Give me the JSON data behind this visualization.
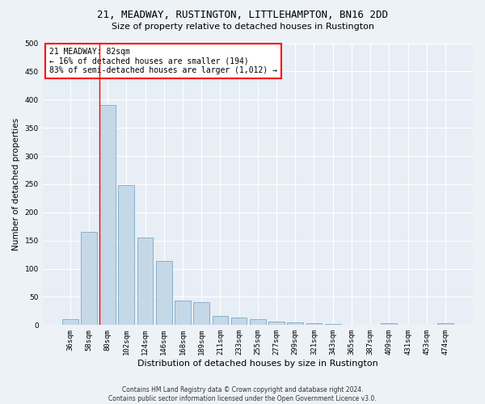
{
  "title1": "21, MEADWAY, RUSTINGTON, LITTLEHAMPTON, BN16 2DD",
  "title2": "Size of property relative to detached houses in Rustington",
  "xlabel": "Distribution of detached houses by size in Rustington",
  "ylabel": "Number of detached properties",
  "footnote": "Contains HM Land Registry data © Crown copyright and database right 2024.\nContains public sector information licensed under the Open Government Licence v3.0.",
  "categories": [
    "36sqm",
    "58sqm",
    "80sqm",
    "102sqm",
    "124sqm",
    "146sqm",
    "168sqm",
    "189sqm",
    "211sqm",
    "233sqm",
    "255sqm",
    "277sqm",
    "299sqm",
    "321sqm",
    "343sqm",
    "365sqm",
    "387sqm",
    "409sqm",
    "431sqm",
    "453sqm",
    "474sqm"
  ],
  "values": [
    10,
    165,
    390,
    248,
    155,
    113,
    43,
    40,
    16,
    13,
    10,
    6,
    5,
    3,
    2,
    1,
    0,
    4,
    1,
    1,
    3
  ],
  "bar_color": "#c5d8e8",
  "bar_edge_color": "#7aaac8",
  "red_line_index": 2,
  "annotation_text": "21 MEADWAY: 82sqm\n← 16% of detached houses are smaller (194)\n83% of semi-detached houses are larger (1,012) →",
  "annotation_box_color": "white",
  "annotation_box_edge_color": "red",
  "annotation_fontsize": 7,
  "title1_fontsize": 9,
  "title2_fontsize": 8,
  "xlabel_fontsize": 8,
  "ylabel_fontsize": 7.5,
  "tick_fontsize": 6.5,
  "footnote_fontsize": 5.5,
  "background_color": "#edf2f7",
  "plot_background_color": "#e8eef5",
  "grid_color": "white",
  "ylim": [
    0,
    500
  ],
  "yticks": [
    0,
    50,
    100,
    150,
    200,
    250,
    300,
    350,
    400,
    450,
    500
  ]
}
